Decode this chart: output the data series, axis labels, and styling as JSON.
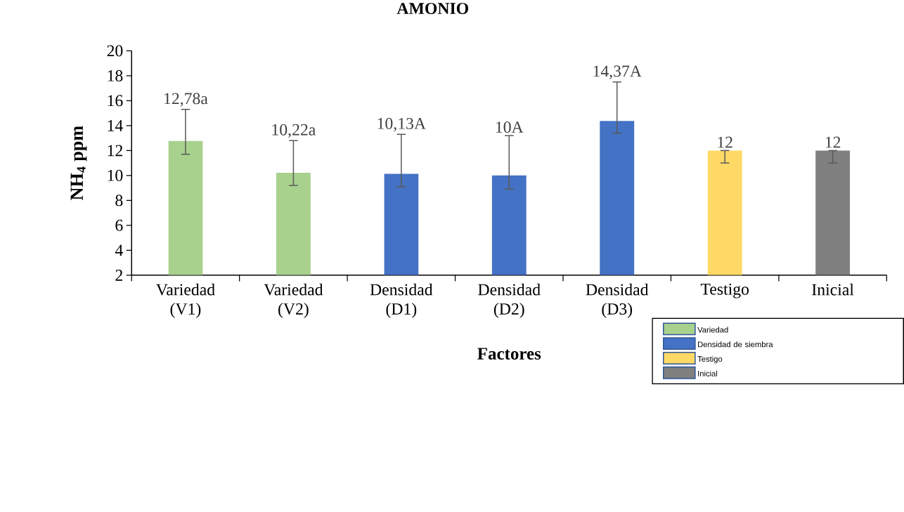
{
  "chart_data": {
    "type": "bar",
    "title": "AMONIO",
    "xlabel": "Factores",
    "ylabel": "NH$_{4}$ ppm",
    "categories": [
      "Variedad (V1)",
      "Variedad (V2)",
      "Densidad (D1)",
      "Densidad (D2)",
      "Densidad (D3)",
      "Testigo",
      "Inicial"
    ],
    "ylim": [
      2,
      20
    ],
    "yticks": [
      2,
      4,
      6,
      8,
      10,
      12,
      14,
      16,
      18,
      20
    ],
    "legend": "bottom right",
    "series": [
      {
        "name": "Variedad",
        "color": "#a9d18e",
        "values": [
          12.78,
          10.22,
          null,
          null,
          null,
          null,
          null
        ],
        "errors": [
          [
            11.7,
            15.3
          ],
          [
            9.2,
            12.8
          ],
          null,
          null,
          null,
          null,
          null
        ],
        "value_labels": [
          "12,78a",
          "10,22a",
          null,
          null,
          null,
          null,
          null
        ]
      },
      {
        "name": "Densidad de siembra",
        "color": "#4472c4",
        "values": [
          null,
          null,
          10.13,
          10,
          14.37,
          null,
          null
        ],
        "errors": [
          null,
          null,
          [
            9.1,
            13.3
          ],
          [
            8.9,
            13.2
          ],
          [
            13.4,
            17.5
          ],
          null,
          null
        ],
        "value_labels": [
          null,
          null,
          "10,13A",
          "10A",
          "14,37A",
          null,
          null
        ]
      },
      {
        "name": "Testigo",
        "color": "#ffd966",
        "values": [
          null,
          null,
          null,
          null,
          null,
          12,
          null
        ],
        "errors": [
          null,
          null,
          null,
          null,
          null,
          [
            11,
            12
          ],
          null
        ],
        "value_labels": [
          null,
          null,
          null,
          null,
          null,
          "12",
          null
        ]
      },
      {
        "name": "Inicial",
        "color": "#7f7f7f",
        "values": [
          null,
          null,
          null,
          null,
          null,
          null,
          12
        ],
        "errors": [
          null,
          null,
          null,
          null,
          null,
          null,
          [
            11,
            12
          ]
        ],
        "value_labels": [
          null,
          null,
          null,
          null,
          null,
          null,
          "12"
        ]
      }
    ]
  }
}
